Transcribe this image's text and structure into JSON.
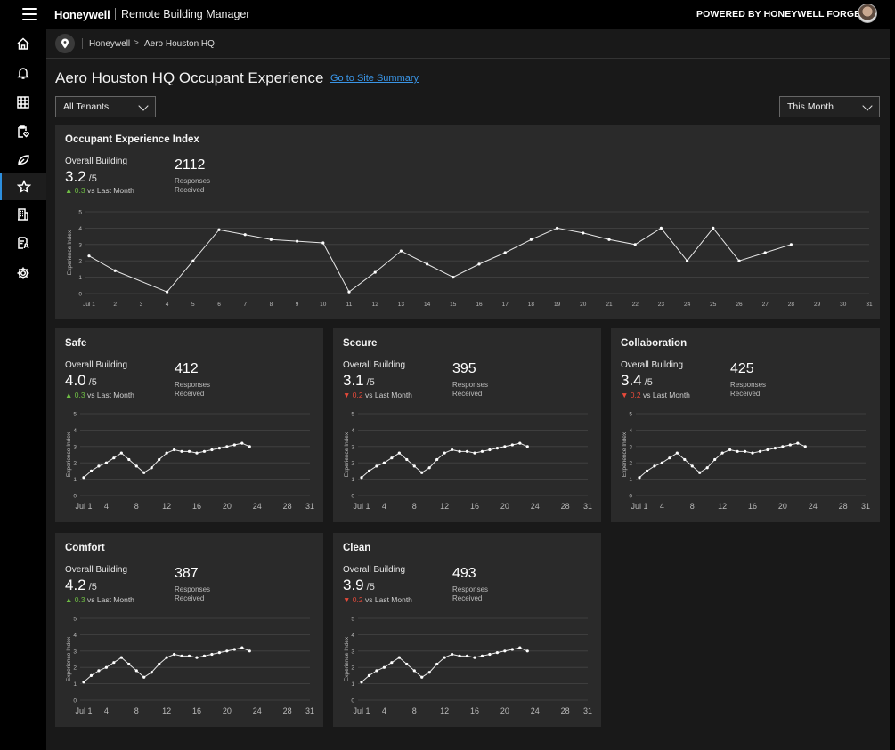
{
  "topbar": {
    "brand": "Honeywell",
    "app_name": "Remote Building Manager",
    "powered_by": "POWERED BY HONEYWELL FORGE"
  },
  "sidebar": {
    "items": [
      {
        "icon": "home-icon"
      },
      {
        "icon": "bell-icon"
      },
      {
        "icon": "grid-icon"
      },
      {
        "icon": "clipboard-heart-icon"
      },
      {
        "icon": "leaf-icon"
      },
      {
        "icon": "star-icon",
        "active": true
      },
      {
        "icon": "building-icon"
      },
      {
        "icon": "document-person-icon"
      },
      {
        "icon": "gear-icon"
      }
    ]
  },
  "breadcrumb": {
    "items": [
      "Honeywell",
      "Aero Houston HQ"
    ],
    "separator": ">"
  },
  "page": {
    "title": "Aero Houston HQ Occupant Experience",
    "site_link": "Go to Site Summary"
  },
  "filters": {
    "tenant": "All Tenants",
    "period": "This Month"
  },
  "labels": {
    "overall_building": "Overall Building",
    "denominator": "/5",
    "vs_last_month": "vs Last Month",
    "responses": "Responses",
    "received": "Received",
    "ylabel": "Experience Index"
  },
  "colors": {
    "accent": "#2d8fde",
    "link": "#3a95e6",
    "up": "#6fbe44",
    "down": "#e84a3a"
  },
  "cards": {
    "main": {
      "title": "Occupant Experience Index",
      "score": "3.2",
      "delta": "0.3",
      "delta_dir": "up",
      "responses": "2112"
    },
    "safe": {
      "title": "Safe",
      "score": "4.0",
      "delta": "0.3",
      "delta_dir": "up",
      "responses": "412"
    },
    "secure": {
      "title": "Secure",
      "score": "3.1",
      "delta": "0.2",
      "delta_dir": "down",
      "responses": "395"
    },
    "collaboration": {
      "title": "Collaboration",
      "score": "3.4",
      "delta": "0.2",
      "delta_dir": "down",
      "responses": "425"
    },
    "comfort": {
      "title": "Comfort",
      "score": "4.2",
      "delta": "0.3",
      "delta_dir": "up",
      "responses": "387"
    },
    "clean": {
      "title": "Clean",
      "score": "3.9",
      "delta": "0.2",
      "delta_dir": "down",
      "responses": "493"
    }
  },
  "chart_data": [
    {
      "id": "main",
      "type": "line",
      "ylabel": "Experience Index",
      "ylim": [
        0,
        5
      ],
      "yticks": [
        0,
        1,
        2,
        3,
        4,
        5
      ],
      "xlim": [
        1,
        31
      ],
      "xticks": [
        1,
        2,
        3,
        4,
        5,
        6,
        7,
        8,
        9,
        10,
        11,
        12,
        13,
        14,
        15,
        16,
        17,
        18,
        19,
        20,
        21,
        22,
        23,
        24,
        25,
        26,
        27,
        28,
        29,
        30,
        31
      ],
      "xticklabels": [
        "Jul 1",
        "2",
        "3",
        "4",
        "5",
        "6",
        "7",
        "8",
        "9",
        "10",
        "11",
        "12",
        "13",
        "14",
        "15",
        "16",
        "17",
        "18",
        "19",
        "20",
        "21",
        "22",
        "23",
        "24",
        "25",
        "26",
        "27",
        "28",
        "29",
        "30",
        "31"
      ],
      "grid": true,
      "x": [
        1,
        2,
        4,
        5,
        6,
        7,
        8,
        9,
        10,
        11,
        12,
        13,
        14,
        15,
        16,
        17,
        18,
        19,
        20,
        21,
        22,
        23,
        24,
        25,
        26,
        27,
        28
      ],
      "y": [
        2.3,
        1.4,
        0.1,
        2.0,
        3.9,
        3.6,
        3.3,
        3.2,
        3.1,
        0.1,
        1.3,
        2.6,
        1.8,
        1.0,
        1.8,
        2.5,
        3.3,
        4.0,
        3.7,
        3.3,
        3.0,
        4.0,
        2.0,
        4.0,
        2.0,
        2.5,
        3.0
      ]
    },
    {
      "id": "safe",
      "type": "line",
      "ylabel": "Experience Index",
      "ylim": [
        0,
        5
      ],
      "yticks": [
        0,
        1,
        2,
        3,
        4,
        5
      ],
      "xlim": [
        1,
        31
      ],
      "xticks": [
        1,
        4,
        8,
        12,
        16,
        20,
        24,
        28,
        31
      ],
      "xticklabels": [
        "Jul 1",
        "4",
        "8",
        "12",
        "16",
        "20",
        "24",
        "28",
        "31"
      ],
      "grid": true,
      "x": [
        1,
        2,
        3,
        4,
        5,
        6,
        7,
        8,
        9,
        10,
        11,
        12,
        13,
        14,
        15,
        16,
        17,
        18,
        19,
        20,
        21,
        22,
        23,
        24,
        25,
        26,
        27
      ],
      "y": [
        1.1,
        1.5,
        1.8,
        2.0,
        2.3,
        2.6,
        2.2,
        1.8,
        1.4,
        1.7,
        2.2,
        2.6,
        2.8,
        2.7,
        2.7,
        2.6,
        2.7,
        2.8,
        2.9,
        3.0,
        3.1,
        3.2,
        3.0,
        null,
        null,
        null,
        null
      ]
    },
    {
      "id": "secure",
      "type": "line",
      "ylabel": "Experience Index",
      "ylim": [
        0,
        5
      ],
      "yticks": [
        0,
        1,
        2,
        3,
        4,
        5
      ],
      "xlim": [
        1,
        31
      ],
      "xticks": [
        1,
        4,
        8,
        12,
        16,
        20,
        24,
        28,
        31
      ],
      "xticklabels": [
        "Jul 1",
        "4",
        "8",
        "12",
        "16",
        "20",
        "24",
        "28",
        "31"
      ],
      "grid": true,
      "x": [
        1,
        2,
        3,
        4,
        5,
        6,
        7,
        8,
        9,
        10,
        11,
        12,
        13,
        14,
        15,
        16,
        17,
        18,
        19,
        20,
        21,
        22,
        23
      ],
      "y": [
        1.1,
        1.5,
        1.8,
        2.0,
        2.3,
        2.6,
        2.2,
        1.8,
        1.4,
        1.7,
        2.2,
        2.6,
        2.8,
        2.7,
        2.7,
        2.6,
        2.7,
        2.8,
        2.9,
        3.0,
        3.1,
        3.2,
        3.0
      ]
    },
    {
      "id": "collaboration",
      "type": "line",
      "ylabel": "Experience Index",
      "ylim": [
        0,
        5
      ],
      "yticks": [
        0,
        1,
        2,
        3,
        4,
        5
      ],
      "xlim": [
        1,
        31
      ],
      "xticks": [
        1,
        4,
        8,
        12,
        16,
        20,
        24,
        28,
        31
      ],
      "xticklabels": [
        "Jul 1",
        "4",
        "8",
        "12",
        "16",
        "20",
        "24",
        "28",
        "31"
      ],
      "grid": true,
      "x": [
        1,
        2,
        3,
        4,
        5,
        6,
        7,
        8,
        9,
        10,
        11,
        12,
        13,
        14,
        15,
        16,
        17,
        18,
        19,
        20,
        21,
        22,
        23
      ],
      "y": [
        1.1,
        1.5,
        1.8,
        2.0,
        2.3,
        2.6,
        2.2,
        1.8,
        1.4,
        1.7,
        2.2,
        2.6,
        2.8,
        2.7,
        2.7,
        2.6,
        2.7,
        2.8,
        2.9,
        3.0,
        3.1,
        3.2,
        3.0
      ]
    },
    {
      "id": "comfort",
      "type": "line",
      "ylabel": "Experience Index",
      "ylim": [
        0,
        5
      ],
      "yticks": [
        0,
        1,
        2,
        3,
        4,
        5
      ],
      "xlim": [
        1,
        31
      ],
      "xticks": [
        1,
        4,
        8,
        12,
        16,
        20,
        24,
        28,
        31
      ],
      "xticklabels": [
        "Jul 1",
        "4",
        "8",
        "12",
        "16",
        "20",
        "24",
        "28",
        "31"
      ],
      "grid": true,
      "x": [
        1,
        2,
        3,
        4,
        5,
        6,
        7,
        8,
        9,
        10,
        11,
        12,
        13,
        14,
        15,
        16,
        17,
        18,
        19,
        20,
        21,
        22,
        23
      ],
      "y": [
        1.1,
        1.5,
        1.8,
        2.0,
        2.3,
        2.6,
        2.2,
        1.8,
        1.4,
        1.7,
        2.2,
        2.6,
        2.8,
        2.7,
        2.7,
        2.6,
        2.7,
        2.8,
        2.9,
        3.0,
        3.1,
        3.2,
        3.0
      ]
    },
    {
      "id": "clean",
      "type": "line",
      "ylabel": "Experience Index",
      "ylim": [
        0,
        5
      ],
      "yticks": [
        0,
        1,
        2,
        3,
        4,
        5
      ],
      "xlim": [
        1,
        31
      ],
      "xticks": [
        1,
        4,
        8,
        12,
        16,
        20,
        24,
        28,
        31
      ],
      "xticklabels": [
        "Jul 1",
        "4",
        "8",
        "12",
        "16",
        "20",
        "24",
        "28",
        "31"
      ],
      "grid": true,
      "x": [
        1,
        2,
        3,
        4,
        5,
        6,
        7,
        8,
        9,
        10,
        11,
        12,
        13,
        14,
        15,
        16,
        17,
        18,
        19,
        20,
        21,
        22,
        23
      ],
      "y": [
        1.1,
        1.5,
        1.8,
        2.0,
        2.3,
        2.6,
        2.2,
        1.8,
        1.4,
        1.7,
        2.2,
        2.6,
        2.8,
        2.7,
        2.7,
        2.6,
        2.7,
        2.8,
        2.9,
        3.0,
        3.1,
        3.2,
        3.0
      ]
    }
  ]
}
